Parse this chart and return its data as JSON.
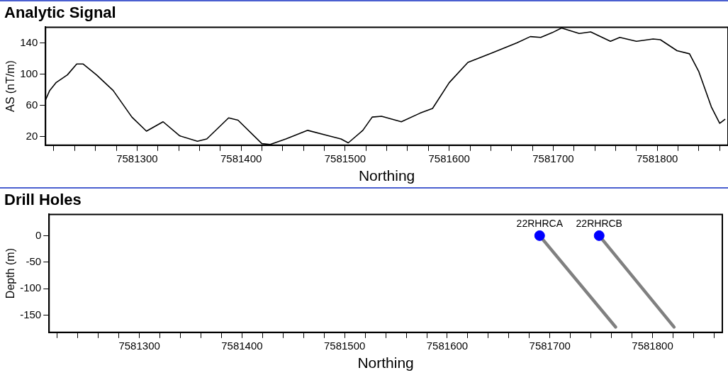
{
  "chart_data": [
    {
      "type": "line",
      "title": "Analytic Signal",
      "xlabel": "Northing",
      "ylabel": "AS (nT/m)",
      "xlim": [
        7581212,
        7581868
      ],
      "ylim": [
        9,
        160
      ],
      "yticks": [
        20,
        60,
        100,
        140
      ],
      "xticks": [
        {
          "value": 7581220,
          "label": null
        },
        {
          "value": 7581240,
          "label": null
        },
        {
          "value": 7581260,
          "label": null
        },
        {
          "value": 7581280,
          "label": null
        },
        7581300,
        {
          "value": 7581320,
          "label": null
        },
        {
          "value": 7581340,
          "label": null
        },
        {
          "value": 7581360,
          "label": null
        },
        {
          "value": 7581380,
          "label": null
        },
        7581400,
        {
          "value": 7581420,
          "label": null
        },
        {
          "value": 7581440,
          "label": null
        },
        {
          "value": 7581460,
          "label": null
        },
        {
          "value": 7581480,
          "label": null
        },
        7581500,
        {
          "value": 7581520,
          "label": null
        },
        {
          "value": 7581540,
          "label": null
        },
        {
          "value": 7581560,
          "label": null
        },
        {
          "value": 7581580,
          "label": null
        },
        7581600,
        {
          "value": 7581620,
          "label": null
        },
        {
          "value": 7581640,
          "label": null
        },
        {
          "value": 7581660,
          "label": null
        },
        {
          "value": 7581680,
          "label": null
        },
        7581700,
        {
          "value": 7581720,
          "label": null
        },
        {
          "value": 7581740,
          "label": null
        },
        {
          "value": 7581760,
          "label": null
        },
        {
          "value": 7581780,
          "label": null
        },
        7581800,
        {
          "value": 7581820,
          "label": null
        },
        {
          "value": 7581840,
          "label": null
        },
        {
          "value": 7581860,
          "label": null
        }
      ],
      "series": [
        {
          "color": "#000000",
          "x": [
            7581212,
            7581216,
            7581222,
            7581233,
            7581242,
            7581248,
            7581261,
            7581277,
            7581295,
            7581309,
            7581325,
            7581341,
            7581358,
            7581367,
            7581388,
            7581397,
            7581420,
            7581428,
            7581443,
            7581464,
            7581484,
            7581496,
            7581503,
            7581517,
            7581526,
            7581535,
            7581554,
            7581572,
            7581584,
            7581600,
            7581618,
            7581641,
            7581665,
            7581678,
            7581688,
            7581699,
            7581708,
            7581725,
            7581736,
            7581755,
            7581764,
            7581780,
            7581796,
            7581803,
            7581819,
            7581831,
            7581840,
            7581852,
            7581860,
            7581865
          ],
          "values": [
            67,
            79,
            89,
            99,
            113,
            113,
            99,
            79,
            45,
            27,
            39,
            21,
            14,
            17,
            44,
            41,
            11,
            10,
            17,
            28,
            21,
            17,
            12,
            28,
            45,
            46,
            39,
            50,
            56,
            89,
            115,
            127,
            140,
            148,
            147,
            153,
            159,
            152,
            154,
            142,
            147,
            142,
            145,
            144,
            130,
            126,
            103,
            58,
            37,
            42
          ]
        }
      ]
    },
    {
      "type": "scatter",
      "title": "Drill Holes",
      "xlabel": "Northing",
      "ylabel": "Depth (m)",
      "marker": "circle",
      "xlim": [
        7581212,
        7581868
      ],
      "ylim": [
        -182,
        40
      ],
      "yticks": [
        -150,
        -100,
        -50,
        0
      ],
      "xticks": [
        {
          "value": 7581220,
          "label": null
        },
        {
          "value": 7581240,
          "label": null
        },
        {
          "value": 7581260,
          "label": null
        },
        {
          "value": 7581280,
          "label": null
        },
        7581300,
        {
          "value": 7581320,
          "label": null
        },
        {
          "value": 7581340,
          "label": null
        },
        {
          "value": 7581360,
          "label": null
        },
        {
          "value": 7581380,
          "label": null
        },
        7581400,
        {
          "value": 7581420,
          "label": null
        },
        {
          "value": 7581440,
          "label": null
        },
        {
          "value": 7581460,
          "label": null
        },
        {
          "value": 7581480,
          "label": null
        },
        7581500,
        {
          "value": 7581520,
          "label": null
        },
        {
          "value": 7581540,
          "label": null
        },
        {
          "value": 7581560,
          "label": null
        },
        {
          "value": 7581580,
          "label": null
        },
        7581600,
        {
          "value": 7581620,
          "label": null
        },
        {
          "value": 7581640,
          "label": null
        },
        {
          "value": 7581660,
          "label": null
        },
        {
          "value": 7581680,
          "label": null
        },
        7581700,
        {
          "value": 7581720,
          "label": null
        },
        {
          "value": 7581740,
          "label": null
        },
        {
          "value": 7581760,
          "label": null
        },
        {
          "value": 7581780,
          "label": null
        },
        7581800,
        {
          "value": 7581820,
          "label": null
        },
        {
          "value": 7581840,
          "label": null
        },
        {
          "value": 7581860,
          "label": null
        }
      ],
      "series": [
        {
          "type": "line",
          "marker": "none",
          "color": "#808080",
          "x": [
            7581690,
            7581764
          ],
          "values": [
            0,
            -172
          ]
        },
        {
          "type": "line",
          "marker": "none",
          "color": "#808080",
          "x": [
            7581748,
            7581821
          ],
          "values": [
            0,
            -172
          ]
        },
        {
          "type": "scatter",
          "color": "#0000ff",
          "x": [
            7581690,
            7581748
          ],
          "values": [
            0,
            0
          ]
        }
      ],
      "annotations": [
        {
          "text": "22RHRCA",
          "x": 7581690,
          "y": 0
        },
        {
          "text": "22RHRCB",
          "x": 7581748,
          "y": 0
        }
      ]
    }
  ]
}
